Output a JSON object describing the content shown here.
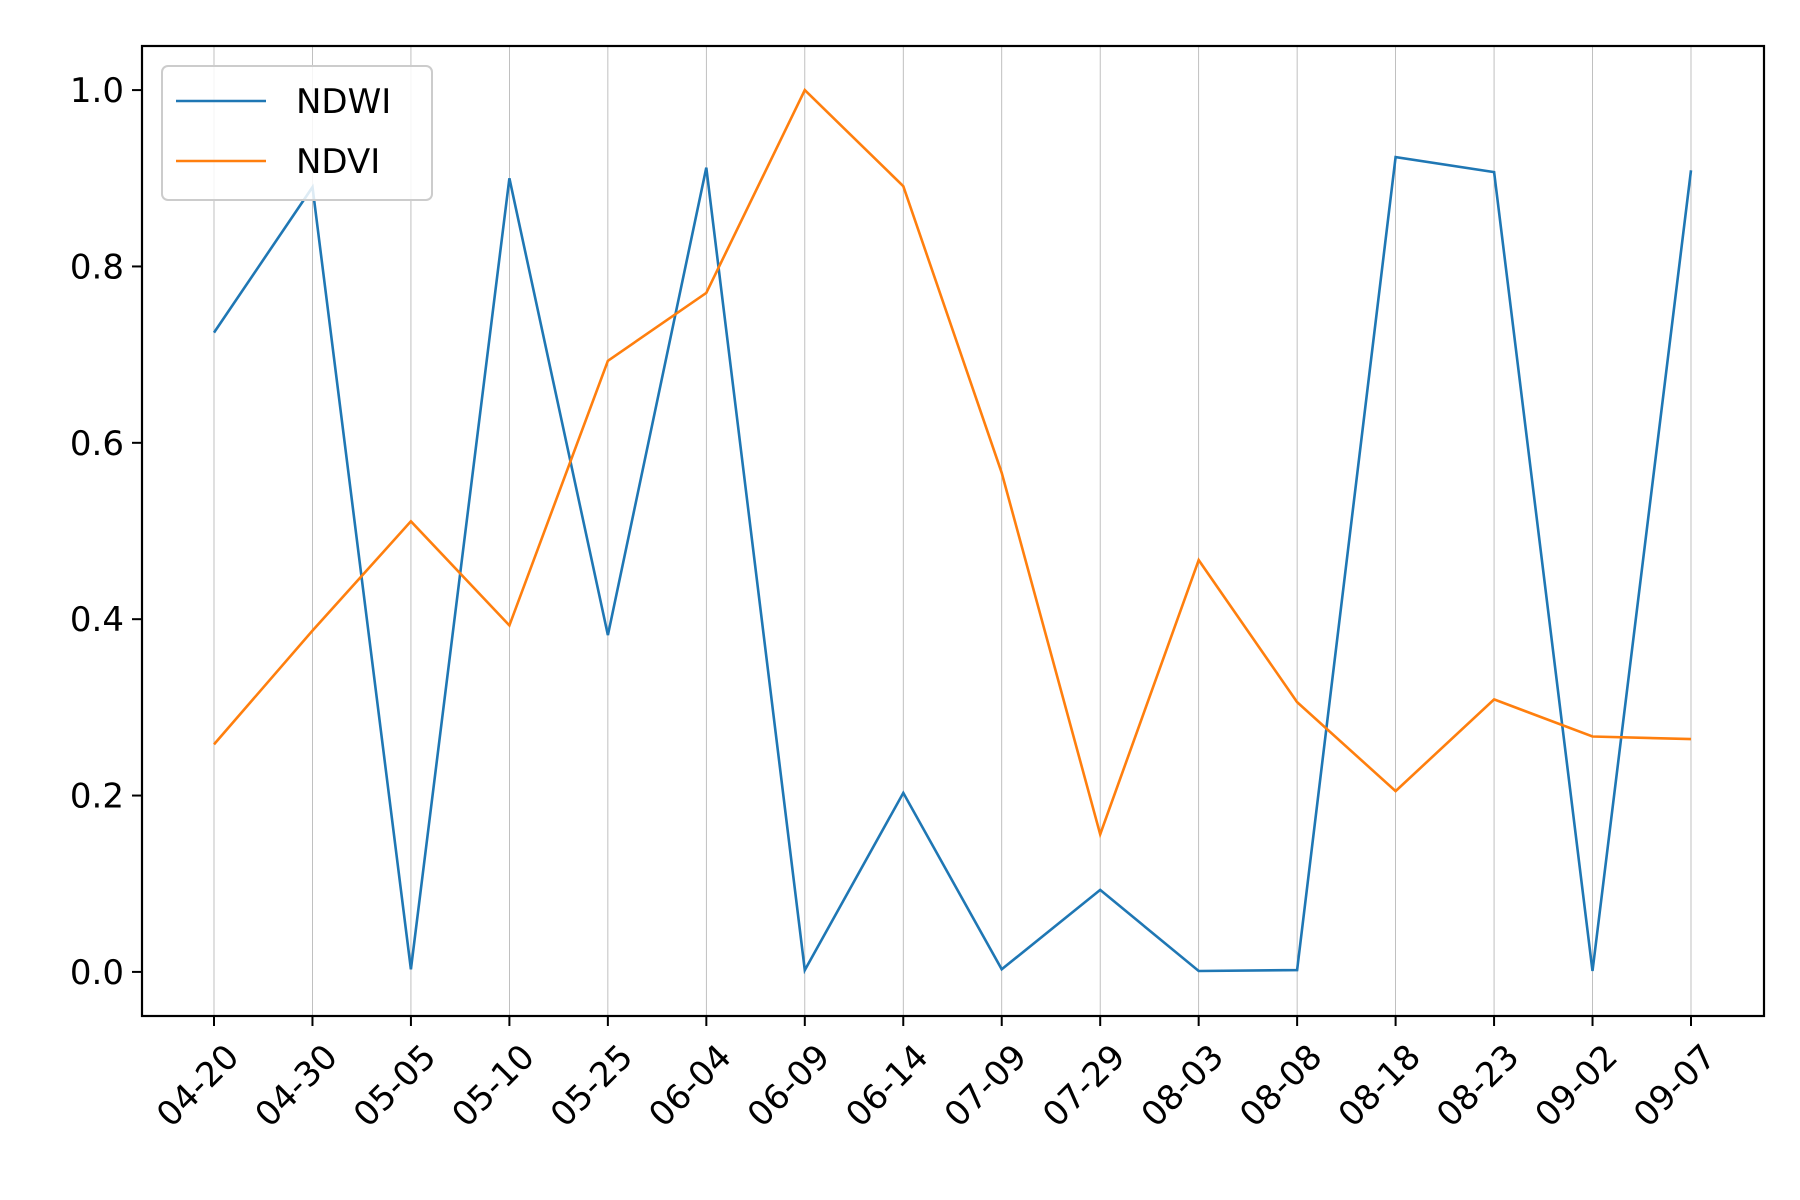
{
  "chart_data": {
    "type": "line",
    "categories": [
      "04-20",
      "04-30",
      "05-05",
      "05-10",
      "05-25",
      "06-04",
      "06-09",
      "06-14",
      "07-09",
      "07-29",
      "08-03",
      "08-08",
      "08-18",
      "08-23",
      "09-02",
      "09-07"
    ],
    "series": [
      {
        "name": "NDWI",
        "color": "#1f77b4",
        "values": [
          0.725,
          0.89,
          0.003,
          0.9,
          0.382,
          0.912,
          0.002,
          0.203,
          0.003,
          0.093,
          0.001,
          0.002,
          0.924,
          0.907,
          0.001,
          0.909
        ]
      },
      {
        "name": "NDVI",
        "color": "#ff7f0e",
        "values": [
          0.258,
          0.387,
          0.511,
          0.393,
          0.693,
          0.77,
          1.0,
          0.891,
          0.566,
          0.156,
          0.467,
          0.306,
          0.205,
          0.309,
          0.267,
          0.264
        ]
      }
    ],
    "yticks": [
      "0.0",
      "0.2",
      "0.4",
      "0.6",
      "0.8",
      "1.0"
    ],
    "ylim": [
      -0.05,
      1.05
    ],
    "grid": "vertical",
    "legend": "top-left",
    "title": "",
    "xlabel": "",
    "ylabel": ""
  }
}
